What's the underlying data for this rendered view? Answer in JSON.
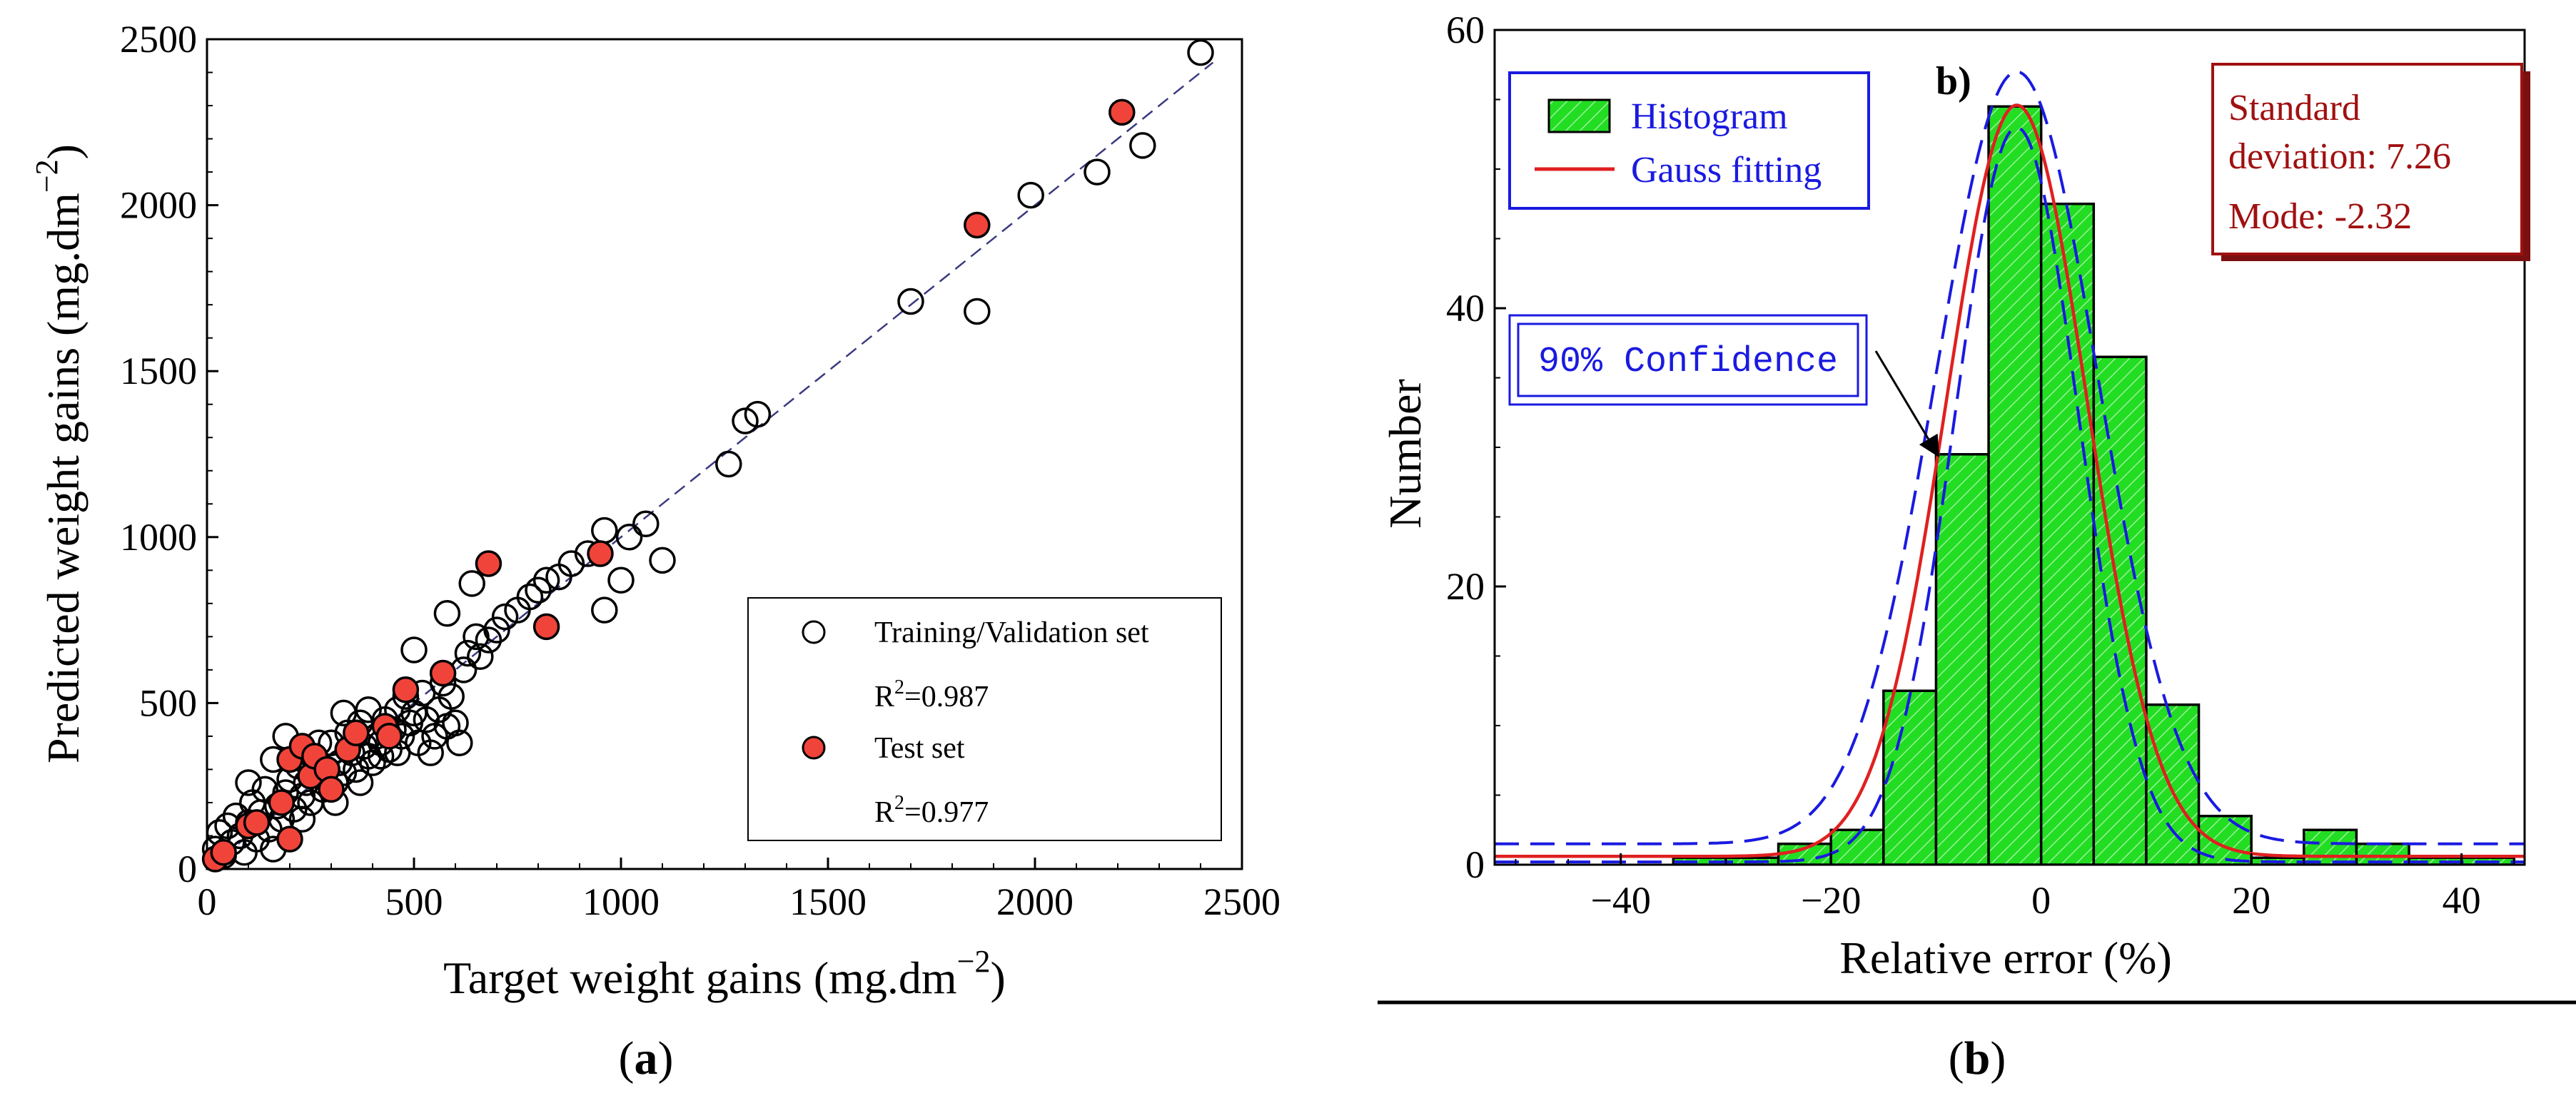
{
  "chart_data": [
    {
      "panel": "a",
      "type": "scatter",
      "caption_letter": "a",
      "xlabel_main": "Target weight gains (mg.dm",
      "xlabel_sup": "−2",
      "xlabel_end": ")",
      "ylabel_main": "Predicted weight gains (mg.dm",
      "ylabel_sup": "−2",
      "ylabel_end": ")",
      "xlim": [
        0,
        2500
      ],
      "ylim": [
        0,
        2500
      ],
      "xticks": [
        0,
        500,
        1000,
        1500,
        2000,
        2500
      ],
      "yticks": [
        0,
        500,
        1000,
        1500,
        2000,
        2500
      ],
      "fit_line": {
        "from": [
          0,
          0
        ],
        "to": [
          2430,
          2430
        ],
        "style": "dashed"
      },
      "legend": {
        "position": "bottom-right",
        "training_label": "Training/Validation set",
        "training_r2_prefix": "R",
        "training_r2_sup": "2",
        "training_r2_value": "=0.987",
        "test_label": "Test set",
        "test_r2_prefix": "R",
        "test_r2_sup": "2",
        "test_r2_value": "=0.977"
      },
      "series": [
        {
          "name": "Training/Validation set",
          "marker": "open-circle",
          "points": [
            [
              20,
              60
            ],
            [
              30,
              110
            ],
            [
              40,
              40
            ],
            [
              50,
              130
            ],
            [
              60,
              80
            ],
            [
              70,
              160
            ],
            [
              80,
              100
            ],
            [
              90,
              50
            ],
            [
              100,
              140
            ],
            [
              110,
              200
            ],
            [
              120,
              90
            ],
            [
              130,
              170
            ],
            [
              140,
              240
            ],
            [
              150,
              120
            ],
            [
              160,
              60
            ],
            [
              170,
              190
            ],
            [
              180,
              150
            ],
            [
              190,
              230
            ],
            [
              200,
              270
            ],
            [
              210,
              180
            ],
            [
              220,
              310
            ],
            [
              230,
              220
            ],
            [
              240,
              260
            ],
            [
              250,
              200
            ],
            [
              260,
              330
            ],
            [
              270,
              280
            ],
            [
              280,
              240
            ],
            [
              290,
              300
            ],
            [
              300,
              380
            ],
            [
              310,
              260
            ],
            [
              320,
              320
            ],
            [
              330,
              290
            ],
            [
              340,
              410
            ],
            [
              350,
              350
            ],
            [
              360,
              300
            ],
            [
              370,
              440
            ],
            [
              380,
              370
            ],
            [
              390,
              340
            ],
            [
              400,
              320
            ],
            [
              410,
              400
            ],
            [
              420,
              380
            ],
            [
              430,
              450
            ],
            [
              440,
              360
            ],
            [
              450,
              420
            ],
            [
              460,
              480
            ],
            [
              470,
              400
            ],
            [
              480,
              520
            ],
            [
              490,
              440
            ],
            [
              500,
              470
            ],
            [
              510,
              380
            ],
            [
              520,
              530
            ],
            [
              530,
              450
            ],
            [
              540,
              350
            ],
            [
              550,
              400
            ],
            [
              560,
              480
            ],
            [
              570,
              560
            ],
            [
              580,
              430
            ],
            [
              590,
              520
            ],
            [
              600,
              440
            ],
            [
              610,
              380
            ],
            [
              620,
              600
            ],
            [
              630,
              650
            ],
            [
              640,
              860
            ],
            [
              650,
              700
            ],
            [
              660,
              640
            ],
            [
              680,
              690
            ],
            [
              700,
              720
            ],
            [
              720,
              760
            ],
            [
              750,
              780
            ],
            [
              780,
              820
            ],
            [
              800,
              840
            ],
            [
              820,
              870
            ],
            [
              850,
              880
            ],
            [
              880,
              920
            ],
            [
              920,
              950
            ],
            [
              960,
              1020
            ],
            [
              960,
              780
            ],
            [
              1000,
              870
            ],
            [
              1020,
              1000
            ],
            [
              1060,
              1040
            ],
            [
              1100,
              930
            ],
            [
              580,
              770
            ],
            [
              500,
              660
            ],
            [
              1260,
              1220
            ],
            [
              1300,
              1350
            ],
            [
              1330,
              1370
            ],
            [
              1700,
              1710
            ],
            [
              1860,
              1680
            ],
            [
              1990,
              2030
            ],
            [
              2150,
              2100
            ],
            [
              2260,
              2180
            ],
            [
              2400,
              2460
            ],
            [
              100,
              260
            ],
            [
              160,
              330
            ],
            [
              190,
              400
            ],
            [
              230,
              150
            ],
            [
              270,
              380
            ],
            [
              310,
              200
            ],
            [
              330,
              470
            ],
            [
              370,
              260
            ],
            [
              390,
              480
            ],
            [
              420,
              340
            ],
            [
              460,
              350
            ]
          ]
        },
        {
          "name": "Test set",
          "marker": "filled-circle",
          "color": "#f0443a",
          "points": [
            [
              20,
              30
            ],
            [
              40,
              50
            ],
            [
              100,
              130
            ],
            [
              120,
              140
            ],
            [
              180,
              200
            ],
            [
              200,
              90
            ],
            [
              200,
              330
            ],
            [
              230,
              370
            ],
            [
              250,
              280
            ],
            [
              260,
              340
            ],
            [
              290,
              300
            ],
            [
              300,
              240
            ],
            [
              340,
              360
            ],
            [
              360,
              410
            ],
            [
              430,
              430
            ],
            [
              440,
              400
            ],
            [
              480,
              540
            ],
            [
              570,
              590
            ],
            [
              680,
              920
            ],
            [
              820,
              730
            ],
            [
              950,
              950
            ],
            [
              1860,
              1940
            ],
            [
              2210,
              2280
            ]
          ]
        }
      ]
    },
    {
      "panel": "b",
      "type": "bar",
      "subtitle": "b)",
      "caption_letter": "b",
      "xlabel": "Relative error (%)",
      "ylabel": "Number",
      "xlim": [
        -52,
        46
      ],
      "ylim": [
        0,
        60
      ],
      "xticks": [
        -40,
        -20,
        0,
        20,
        40
      ],
      "xtick_labels": [
        "−40",
        "−20",
        "0",
        "20",
        "40"
      ],
      "yticks": [
        0,
        20,
        40,
        60
      ],
      "bin_width": 5,
      "histogram": [
        {
          "x0": -35,
          "count": 0.5
        },
        {
          "x0": -30,
          "count": 0.5
        },
        {
          "x0": -25,
          "count": 1.5
        },
        {
          "x0": -20,
          "count": 2.5
        },
        {
          "x0": -15,
          "count": 12.5
        },
        {
          "x0": -10,
          "count": 29.5
        },
        {
          "x0": -5,
          "count": 54.5
        },
        {
          "x0": 0,
          "count": 47.5
        },
        {
          "x0": 5,
          "count": 36.5
        },
        {
          "x0": 10,
          "count": 11.5
        },
        {
          "x0": 15,
          "count": 3.5
        },
        {
          "x0": 20,
          "count": 0.5
        },
        {
          "x0": 25,
          "count": 2.5
        },
        {
          "x0": 30,
          "count": 1.5
        },
        {
          "x0": 35,
          "count": 0.5
        },
        {
          "x0": 40,
          "count": 0.5
        }
      ],
      "gauss_fit": {
        "amplitude": 54,
        "mean": -2.32,
        "sigma": 6.7,
        "baseline": 0.6
      },
      "confidence_band": {
        "amplitude": 55,
        "mean": -2.32,
        "sigma_outer": 7.7,
        "sigma_inner": 5.9,
        "upper_offset": 2.0,
        "baseline_outer": 1.5,
        "baseline_inner": 0.2
      },
      "legend": {
        "position": "top-left",
        "histogram_label": "Histogram",
        "gauss_label": "Gauss fitting"
      },
      "confidence_label": "90% Confidence",
      "stats_box": {
        "line1": "Standard",
        "line2": "deviation: 7.26",
        "line3": "Mode: -2.32"
      },
      "colors": {
        "bar_fill": "#22dd22",
        "gauss_line": "#e02020",
        "confidence_line": "#1a1ae0",
        "legend_text": "#1a1ae0",
        "stats_text": "#a01010"
      }
    }
  ]
}
